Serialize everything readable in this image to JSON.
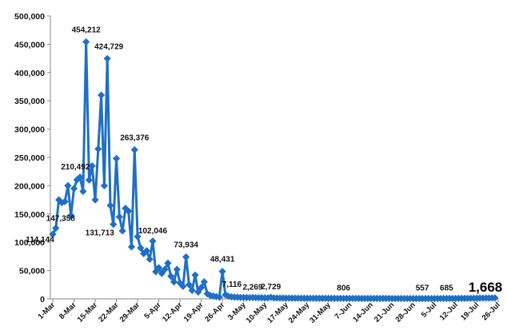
{
  "chart_data": {
    "type": "line",
    "title": "",
    "xlabel": "",
    "ylabel": "",
    "ylim": [
      0,
      500000
    ],
    "yticks": [
      "0",
      "50,000",
      "100,000",
      "150,000",
      "200,000",
      "250,000",
      "300,000",
      "350,000",
      "400,000",
      "450,000",
      "500,000"
    ],
    "ytick_values": [
      0,
      50000,
      100000,
      150000,
      200000,
      250000,
      300000,
      350000,
      400000,
      450000,
      500000
    ],
    "x_start": "1-Mar",
    "x_ticks": [
      {
        "day": 0,
        "label": "1-Mar"
      },
      {
        "day": 7,
        "label": "8-Mar"
      },
      {
        "day": 14,
        "label": "15-Mar"
      },
      {
        "day": 21,
        "label": "22-Mar"
      },
      {
        "day": 28,
        "label": "29-Mar"
      },
      {
        "day": 35,
        "label": "5-Apr"
      },
      {
        "day": 42,
        "label": "12-Apr"
      },
      {
        "day": 49,
        "label": "19-Apr"
      },
      {
        "day": 56,
        "label": "26-Apr"
      },
      {
        "day": 63,
        "label": "3-May"
      },
      {
        "day": 70,
        "label": "10-May"
      },
      {
        "day": 77,
        "label": "17-May"
      },
      {
        "day": 84,
        "label": "24-May"
      },
      {
        "day": 91,
        "label": "31-May"
      },
      {
        "day": 98,
        "label": "7-Jun"
      },
      {
        "day": 105,
        "label": "14-Jun"
      },
      {
        "day": 112,
        "label": "21-Jun"
      },
      {
        "day": 119,
        "label": "28-Jun"
      },
      {
        "day": 126,
        "label": "5-Jul"
      },
      {
        "day": 133,
        "label": "12-Jul"
      },
      {
        "day": 140,
        "label": "19-Jul"
      },
      {
        "day": 147,
        "label": "26-Jul"
      }
    ],
    "series": [
      {
        "color": "#1f6fc5",
        "values": [
          114144,
          125000,
          175000,
          170000,
          172000,
          200000,
          147358,
          195000,
          210492,
          215000,
          190000,
          454212,
          210000,
          235000,
          175000,
          265000,
          360000,
          200000,
          424729,
          165000,
          131713,
          248000,
          145000,
          120000,
          160000,
          155000,
          92000,
          263376,
          110000,
          90000,
          80000,
          85000,
          70000,
          102046,
          48000,
          55000,
          45000,
          52000,
          63000,
          40000,
          30000,
          52000,
          28000,
          22000,
          73934,
          25000,
          15000,
          42000,
          12000,
          20000,
          30000,
          9000,
          6000,
          5000,
          4000,
          3000,
          48431,
          7116,
          4500,
          3500,
          3000,
          2800,
          2500,
          2400,
          2300,
          2200,
          2269,
          2100,
          2000,
          1900,
          1800,
          1700,
          2729,
          1600,
          1500,
          1450,
          1400,
          1350,
          1300,
          1250,
          1200,
          1150,
          1100,
          1050,
          1000,
          980,
          950,
          920,
          900,
          880,
          860,
          850,
          840,
          830,
          820,
          810,
          806,
          800,
          790,
          780,
          770,
          760,
          750,
          740,
          730,
          720,
          710,
          700,
          690,
          680,
          670,
          660,
          650,
          640,
          630,
          620,
          610,
          600,
          590,
          580,
          570,
          560,
          557,
          555,
          560,
          580,
          600,
          620,
          640,
          660,
          685,
          700,
          720,
          750,
          800,
          850,
          900,
          950,
          1000,
          1050,
          1100,
          1200,
          1300,
          1400,
          1500,
          1600,
          1668
        ]
      }
    ],
    "data_labels": [
      {
        "day": 0,
        "text": "114,144"
      },
      {
        "day": 6,
        "text": "147,358"
      },
      {
        "day": 8,
        "text": "210,492"
      },
      {
        "day": 11,
        "text": "454,212"
      },
      {
        "day": 18,
        "text": "424,729"
      },
      {
        "day": 20,
        "text": "131,713"
      },
      {
        "day": 27,
        "text": "263,376"
      },
      {
        "day": 33,
        "text": "102,046"
      },
      {
        "day": 44,
        "text": "73,934"
      },
      {
        "day": 56,
        "text": "48,431"
      },
      {
        "day": 57,
        "text": "7,116"
      },
      {
        "day": 66,
        "text": "2,269"
      },
      {
        "day": 72,
        "text": "2,729"
      },
      {
        "day": 96,
        "text": "806"
      },
      {
        "day": 122,
        "text": "557"
      },
      {
        "day": 130,
        "text": "685"
      },
      {
        "day": 146,
        "text": "1,668"
      }
    ],
    "grid": false,
    "legend": "none"
  }
}
